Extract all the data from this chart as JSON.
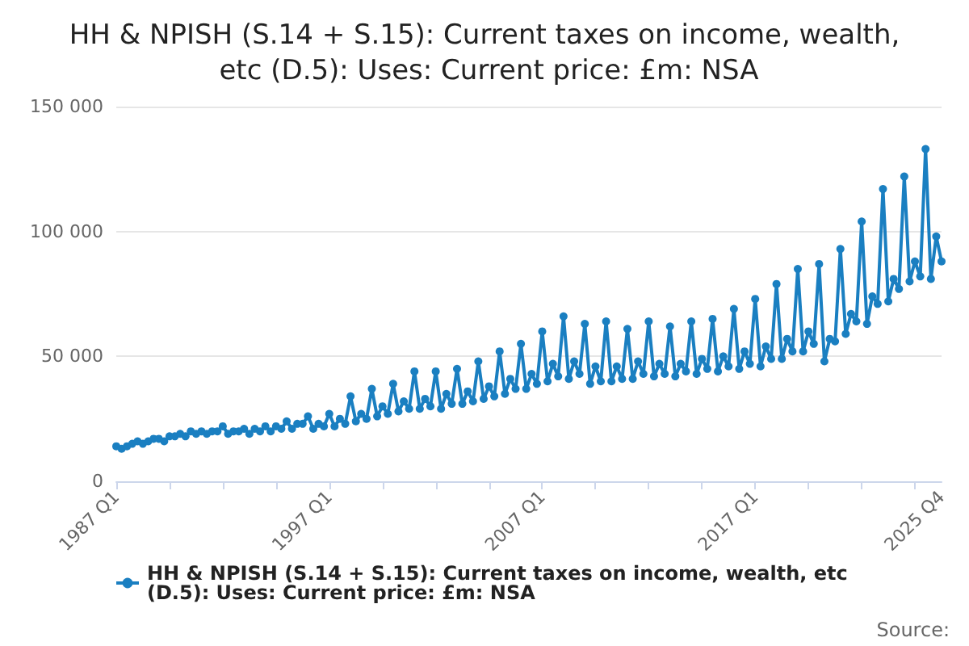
{
  "chart_data": {
    "type": "line",
    "title": "HH & NPISH (S.14 + S.15): Current taxes on income, wealth, etc (D.5): Uses: Current price: £m: NSA",
    "categories": [
      "1987 Q1",
      null,
      null,
      null,
      null,
      null,
      null,
      null,
      null,
      null,
      null,
      null,
      null,
      null,
      null,
      null,
      null,
      null,
      null,
      null,
      null,
      null,
      null,
      null,
      null,
      null,
      null,
      null,
      null,
      null,
      null,
      null,
      null,
      null,
      null,
      null,
      null,
      null,
      null,
      null,
      "1997 Q1",
      null,
      null,
      null,
      null,
      null,
      null,
      null,
      null,
      null,
      null,
      null,
      null,
      null,
      null,
      null,
      null,
      null,
      null,
      null,
      null,
      null,
      null,
      null,
      null,
      null,
      null,
      null,
      null,
      null,
      null,
      null,
      null,
      null,
      null,
      null,
      null,
      null,
      null,
      null,
      "2007 Q1",
      null,
      null,
      null,
      null,
      null,
      null,
      null,
      null,
      null,
      null,
      null,
      null,
      null,
      null,
      null,
      null,
      null,
      null,
      null,
      null,
      null,
      null,
      null,
      null,
      null,
      null,
      null,
      null,
      null,
      null,
      null,
      null,
      null,
      null,
      null,
      null,
      null,
      null,
      null,
      "2017 Q1",
      null,
      null,
      null,
      null,
      null,
      null,
      null,
      null,
      null,
      null,
      null,
      null,
      null,
      null,
      null,
      null,
      null,
      null,
      null,
      null,
      null,
      null,
      null,
      null,
      null,
      null,
      null,
      null,
      null,
      null,
      null,
      null,
      null,
      null,
      "2025 Q4"
    ],
    "series": [
      {
        "name": "HH & NPISH (S.14 + S.15): Current taxes on income, wealth, etc (D.5): Uses: Current price: £m: NSA",
        "color": "#1a7fc1",
        "values": [
          14000,
          13000,
          14000,
          15000,
          16000,
          15000,
          16000,
          17000,
          17000,
          16000,
          18000,
          18000,
          19000,
          18000,
          20000,
          19000,
          20000,
          19000,
          20000,
          20000,
          22000,
          19000,
          20000,
          20000,
          21000,
          19000,
          21000,
          20000,
          22000,
          20000,
          22000,
          21000,
          24000,
          21000,
          23000,
          23000,
          26000,
          21000,
          23000,
          22000,
          27000,
          22000,
          25000,
          23000,
          34000,
          24000,
          27000,
          25000,
          37000,
          26000,
          30000,
          27000,
          39000,
          28000,
          32000,
          29000,
          44000,
          29000,
          33000,
          30000,
          44000,
          29000,
          35000,
          31000,
          45000,
          31000,
          36000,
          32000,
          48000,
          33000,
          38000,
          34000,
          52000,
          35000,
          41000,
          37000,
          55000,
          37000,
          43000,
          39000,
          60000,
          40000,
          47000,
          42000,
          66000,
          41000,
          48000,
          43000,
          63000,
          39000,
          46000,
          40000,
          64000,
          40000,
          46000,
          41000,
          61000,
          41000,
          48000,
          43000,
          64000,
          42000,
          47000,
          43000,
          62000,
          42000,
          47000,
          44000,
          64000,
          43000,
          49000,
          45000,
          65000,
          44000,
          50000,
          46000,
          69000,
          45000,
          52000,
          47000,
          73000,
          46000,
          54000,
          49000,
          79000,
          49000,
          57000,
          52000,
          85000,
          52000,
          60000,
          55000,
          87000,
          48000,
          57000,
          56000,
          93000,
          59000,
          67000,
          64000,
          104000,
          63000,
          74000,
          71000,
          117000,
          72000,
          81000,
          77000,
          122000,
          80000,
          88000,
          82000,
          133000,
          81000,
          98000,
          88000
        ]
      }
    ],
    "ylim": [
      0,
      150000
    ],
    "yticks": [
      {
        "value": 0,
        "label": "0"
      },
      {
        "value": 50000,
        "label": "50 000"
      },
      {
        "value": 100000,
        "label": "100 000"
      },
      {
        "value": 150000,
        "label": "150 000"
      }
    ],
    "grid": "y",
    "legend": "bottom",
    "marker": "circle",
    "line_style": "solid",
    "annotations": [
      "Source:"
    ]
  }
}
